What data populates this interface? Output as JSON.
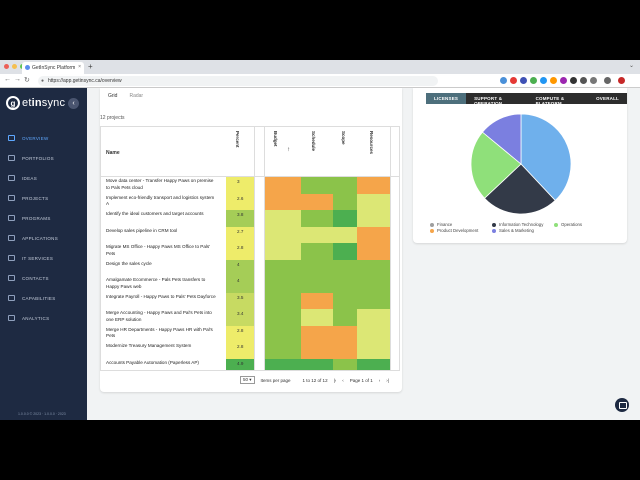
{
  "browser": {
    "tab_title": "GetInSync Platform",
    "tab_close": "×",
    "new_tab": "+",
    "tab_down": "⌄",
    "url": "https://app.getinsync.ca/overview",
    "back": "←",
    "forward": "→",
    "reload": "↻",
    "lock": "🔒",
    "dot_colors": [
      "#ec5f57",
      "#f5bf4f",
      "#5fc454"
    ]
  },
  "sidebar": {
    "logo_mark": "g",
    "logo_pre": "et",
    "logo_bold": "in",
    "logo_post": "sync",
    "collapse": "‹",
    "items": [
      {
        "label": "OVERVIEW",
        "icon": "home-icon",
        "active": true
      },
      {
        "label": "PORTFOLIOS",
        "icon": "portfolio-icon"
      },
      {
        "label": "IDEAS",
        "icon": "lightbulb-icon"
      },
      {
        "label": "PROJECTS",
        "icon": "folder-icon"
      },
      {
        "label": "PROGRAMS",
        "icon": "program-icon"
      },
      {
        "label": "APPLICATIONS",
        "icon": "apps-icon"
      },
      {
        "label": "IT SERVICES",
        "icon": "server-icon"
      },
      {
        "label": "CONTACTS",
        "icon": "contacts-icon"
      },
      {
        "label": "CAPABILITIES",
        "icon": "gear-icon"
      },
      {
        "label": "ANALYTICS",
        "icon": "chart-icon"
      }
    ],
    "footer": "1.0.0.0 © 2023 · 1.0.0.0 · 2023"
  },
  "views": {
    "grid": "Grid",
    "radar": "Radar"
  },
  "count": "12 projects",
  "columns": {
    "name": "Name",
    "percent": "Percent",
    "budget": "Budget",
    "schedule": "Schedule",
    "scope": "Scope",
    "resources": "Resources"
  },
  "colors": {
    "green": "#8bc34a",
    "light": "#dce775",
    "orange": "#f5a54a",
    "dark": "#4caf50",
    "yellow": "#eeec6a"
  },
  "rows": [
    {
      "name": "Move data center - Transfer Happy Paws on premise to Pals Pets cloud",
      "percent": "3",
      "pcolor": "#eeec6a",
      "cells": [
        "orange",
        "green",
        "green",
        "orange"
      ]
    },
    {
      "name": "Implement eco-friendly transport and logistics system A",
      "percent": "2.6",
      "pcolor": "#eeec6a",
      "cells": [
        "orange",
        "orange",
        "green",
        "light"
      ]
    },
    {
      "name": "Identify the ideal customers and target accounts",
      "percent": "3.8",
      "pcolor": "#a5cd57",
      "cells": [
        "light",
        "green",
        "dark",
        "light"
      ]
    },
    {
      "name": "Develop sales pipeline in CRM tool",
      "percent": "2.7",
      "pcolor": "#eeec6a",
      "cells": [
        "light",
        "light",
        "light",
        "orange"
      ]
    },
    {
      "name": "Migrate MS Office - Happy Paws MS Office to Pals' Pets",
      "percent": "2.8",
      "pcolor": "#eeec6a",
      "cells": [
        "light",
        "green",
        "dark",
        "orange"
      ]
    },
    {
      "name": "Design the sales cycle",
      "percent": "4",
      "pcolor": "#a5cd57",
      "cells": [
        "green",
        "green",
        "green",
        "green"
      ]
    },
    {
      "name": "Amalgamate Ecommerce - Pals Pets transfers to Happy Paws web",
      "percent": "4",
      "pcolor": "#a5cd57",
      "cells": [
        "green",
        "green",
        "green",
        "green"
      ]
    },
    {
      "name": "Integrate Payroll - Happy Paws to Pals' Pets Dayforce",
      "percent": "3.5",
      "pcolor": "#c7da62",
      "cells": [
        "green",
        "orange",
        "green",
        "green"
      ]
    },
    {
      "name": "Merge Accounting - Happy Paws and Pal's Pets into one ERP solution",
      "percent": "3.4",
      "pcolor": "#c7da62",
      "cells": [
        "green",
        "light",
        "green",
        "light"
      ]
    },
    {
      "name": "Merge HR Departments - Happy Paws HR with Pal's Pets",
      "percent": "2.8",
      "pcolor": "#eeec6a",
      "cells": [
        "green",
        "orange",
        "orange",
        "light"
      ]
    },
    {
      "name": "Modernize Treasury Management System",
      "percent": "2.8",
      "pcolor": "#eeec6a",
      "cells": [
        "green",
        "orange",
        "orange",
        "light"
      ]
    },
    {
      "name": "Accounts Payable Automation (Paperless AP)",
      "percent": "4.9",
      "pcolor": "#4caf50",
      "cells": [
        "dark",
        "dark",
        "green",
        "dark"
      ]
    }
  ],
  "pager": {
    "per_page": "50 ▾",
    "per_page_label": "Items per page",
    "range": "1 to 12 of 12",
    "page": "Page 1 of 1",
    "first": "|‹",
    "prev": "‹",
    "next": "›",
    "last": "›|"
  },
  "right": {
    "tabs": [
      "LICENSES",
      "SUPPORT & OPERATION",
      "COMPUTE & PLATFORM",
      "OVERALL"
    ],
    "legend": [
      {
        "label": "Finance",
        "color": "#9e9e9e"
      },
      {
        "label": "Information Technology",
        "color": "#333a48"
      },
      {
        "label": "Operations",
        "color": "#8fe07a"
      },
      {
        "label": "Product Development",
        "color": "#f5a54a"
      },
      {
        "label": "Sales & Marketing",
        "color": "#7b7fe0"
      }
    ]
  },
  "chart_data": {
    "type": "pie",
    "categories": [
      "Information Technology",
      "Operations",
      "Sales & Marketing",
      "Finance"
    ],
    "values": [
      38,
      25,
      23,
      14
    ],
    "slice_colors": [
      "#6fb0ec",
      "#333a48",
      "#8fe07a",
      "#7b7fe0"
    ]
  }
}
